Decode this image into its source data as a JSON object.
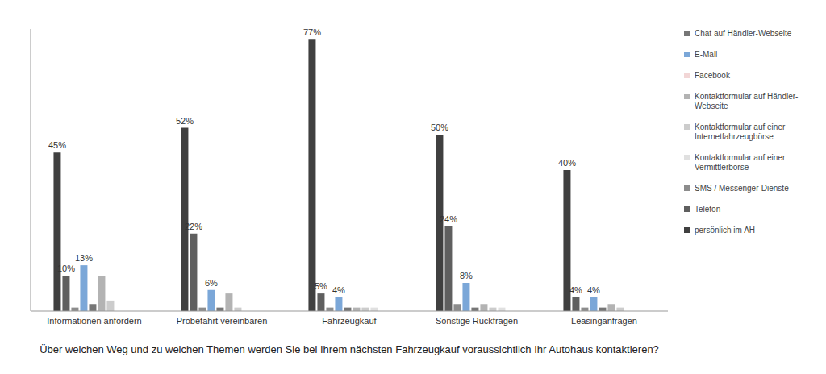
{
  "chart_data": {
    "type": "bar",
    "x_label": "Über welchen Weg und zu welchen Themen werden Sie bei Ihrem nächsten Fahrzeugkauf voraussichtlich Ihr Autohaus kontaktieren?",
    "categories": [
      "Informationen anfordern",
      "Probefahrt vereinbaren",
      "Fahrzeugkauf",
      "Sonstige Rückfragen",
      "Leasinganfragen"
    ],
    "ylim": [
      0,
      80
    ],
    "grid": false,
    "legend": "right",
    "tick_labels": "x",
    "series": [
      {
        "name": "persönlich im AH",
        "color": "#404040",
        "values": [
          45,
          52,
          77,
          50,
          40
        ],
        "data_labels": true,
        "value_labels": [
          "45%",
          "52%",
          "77%",
          "50%",
          "40%"
        ]
      },
      {
        "name": "Telefon",
        "color": "#5f5f5f",
        "values": [
          10,
          22,
          5,
          24,
          4
        ],
        "data_labels": true,
        "value_labels": [
          "10%",
          "22%",
          "5%",
          "24%",
          "4%"
        ]
      },
      {
        "name": "SMS / Messenger-Dienste",
        "color": "#8c8c8c",
        "values": [
          1,
          1,
          1,
          2,
          1
        ]
      },
      {
        "name": "E-Mail",
        "color": "#7ba7d8",
        "values": [
          13,
          6,
          4,
          8,
          4
        ],
        "data_labels": true,
        "value_labels": [
          "13%",
          "6%",
          "4%",
          "8%",
          "4%"
        ]
      },
      {
        "name": "Chat auf Händler-Webseite",
        "color": "#767676",
        "values": [
          2,
          1,
          1,
          1,
          1
        ]
      },
      {
        "name": "Kontaktformular auf Händler-Webseite",
        "color": "#b3b3b3",
        "values": [
          10,
          5,
          1,
          2,
          2
        ]
      },
      {
        "name": "Kontaktformular auf einer Internetfahrzeugbörse",
        "color": "#cccccc",
        "values": [
          3,
          1,
          1,
          1,
          1
        ]
      },
      {
        "name": "Kontaktformular auf einer Vermittlerbörse",
        "color": "#e0e0e0",
        "values": [
          0,
          0,
          1,
          1,
          0
        ]
      },
      {
        "name": "Facebook",
        "color": "#f2d6d6",
        "values": [
          0,
          0,
          0,
          0,
          0
        ]
      }
    ]
  }
}
